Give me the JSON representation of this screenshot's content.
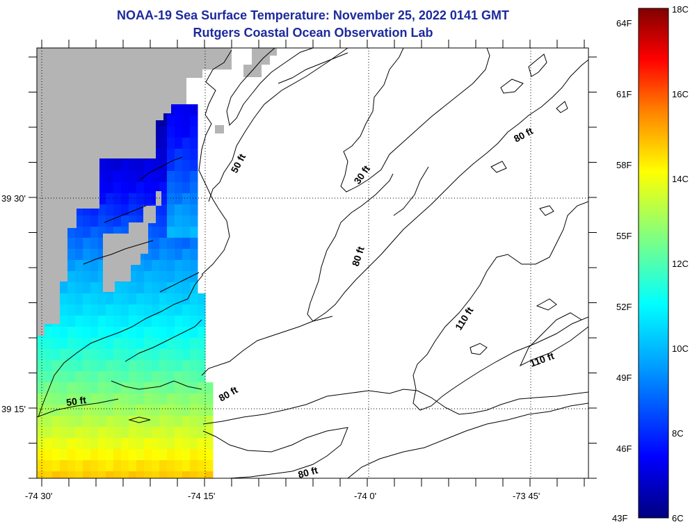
{
  "title": {
    "line1": "NOAA-19 Sea Surface Temperature:  November 25, 2022 0141 GMT",
    "line2": "Rutgers Coastal Ocean Observation Lab"
  },
  "axes": {
    "x_ticks": [
      {
        "label": "-74 30'",
        "lon": -74.5
      },
      {
        "label": "-74 15'",
        "lon": -74.25
      },
      {
        "label": "-74 0'",
        "lon": -74.0
      },
      {
        "label": "-73 45'",
        "lon": -73.75
      }
    ],
    "y_ticks": [
      {
        "label": "39 30'",
        "lat": 39.5
      },
      {
        "label": "39 15'",
        "lat": 39.25
      }
    ]
  },
  "contour_labels": [
    {
      "text": "50 ft"
    },
    {
      "text": "30 ft"
    },
    {
      "text": "80 ft"
    },
    {
      "text": "80 ft"
    },
    {
      "text": "110 ft"
    },
    {
      "text": "110 ft"
    },
    {
      "text": "50 ft"
    },
    {
      "text": "80 ft"
    },
    {
      "text": "80 ft"
    }
  ],
  "colorbar": {
    "celsius": [
      "18C",
      "16C",
      "14C",
      "12C",
      "10C",
      "8C",
      "6C"
    ],
    "fahrenheit": [
      "64F",
      "61F",
      "58F",
      "55F",
      "52F",
      "49F",
      "46F",
      "43F"
    ],
    "min_c": 6,
    "max_c": 18,
    "colors": [
      "#000080",
      "#0000ff",
      "#00a0ff",
      "#00ffff",
      "#80ff80",
      "#ffff00",
      "#ff8000",
      "#ff0000",
      "#800000"
    ]
  },
  "colors": {
    "land": "#b4b4b4",
    "title": "#1c2a9c"
  }
}
